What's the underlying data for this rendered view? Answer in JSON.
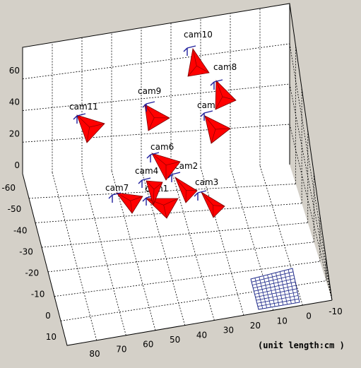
{
  "chart_data": {
    "type": "scatter3d",
    "note": "(unit length:cm )",
    "x_ticks": [
      "80",
      "70",
      "60",
      "50",
      "40",
      "30",
      "20",
      "10",
      "0",
      "-10"
    ],
    "y_ticks": [
      "-60",
      "-50",
      "-40",
      "-30",
      "-20",
      "-10",
      "0",
      "10"
    ],
    "z_ticks": [
      "0",
      "20",
      "40",
      "60"
    ],
    "cameras": [
      {
        "name": "cam1"
      },
      {
        "name": "cam2"
      },
      {
        "name": "cam3"
      },
      {
        "name": "cam4"
      },
      {
        "name": "cam5"
      },
      {
        "name": "cam6"
      },
      {
        "name": "cam7"
      },
      {
        "name": "cam8"
      },
      {
        "name": "cam9"
      },
      {
        "name": "cam10"
      },
      {
        "name": "cam11"
      }
    ],
    "colors": {
      "figure_bg": "#d4d0c8",
      "axes_bg": "#ffffff",
      "camera_fill": "#ff0000",
      "camera_axes": "#1e1e9c",
      "checkerboard": "#1f2a8a"
    }
  }
}
